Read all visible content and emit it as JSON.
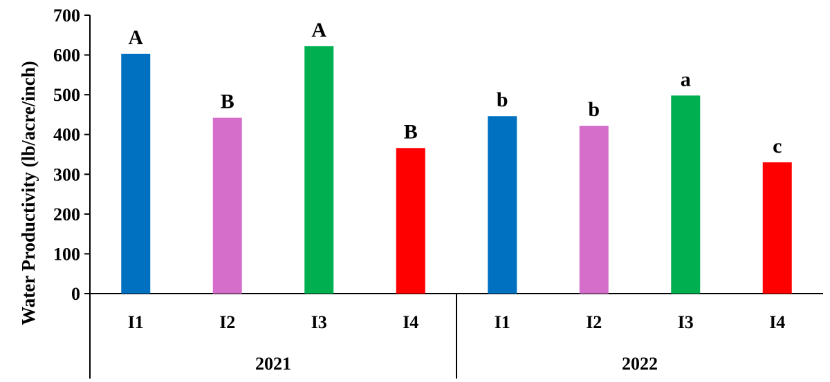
{
  "chart_data": {
    "type": "bar",
    "ylabel": "Water Productivity  (lb/acre/inch)",
    "ylim": [
      0,
      700
    ],
    "yticks": [
      0,
      100,
      200,
      300,
      400,
      500,
      600,
      700
    ],
    "grid": false,
    "groups": [
      {
        "label": "2021",
        "bars": [
          {
            "category": "I1",
            "value": 603,
            "letter": "A",
            "color": "#0070C0"
          },
          {
            "category": "I2",
            "value": 442,
            "letter": "B",
            "color": "#D46ECA"
          },
          {
            "category": "I3",
            "value": 622,
            "letter": "A",
            "color": "#00B050"
          },
          {
            "category": "I4",
            "value": 366,
            "letter": "B",
            "color": "#FF0000"
          }
        ]
      },
      {
        "label": "2022",
        "bars": [
          {
            "category": "I1",
            "value": 446,
            "letter": "b",
            "color": "#0070C0"
          },
          {
            "category": "I2",
            "value": 422,
            "letter": "b",
            "color": "#D46ECA"
          },
          {
            "category": "I3",
            "value": 498,
            "letter": "a",
            "color": "#00B050"
          },
          {
            "category": "I4",
            "value": 330,
            "letter": "c",
            "color": "#FF0000"
          }
        ]
      }
    ]
  }
}
